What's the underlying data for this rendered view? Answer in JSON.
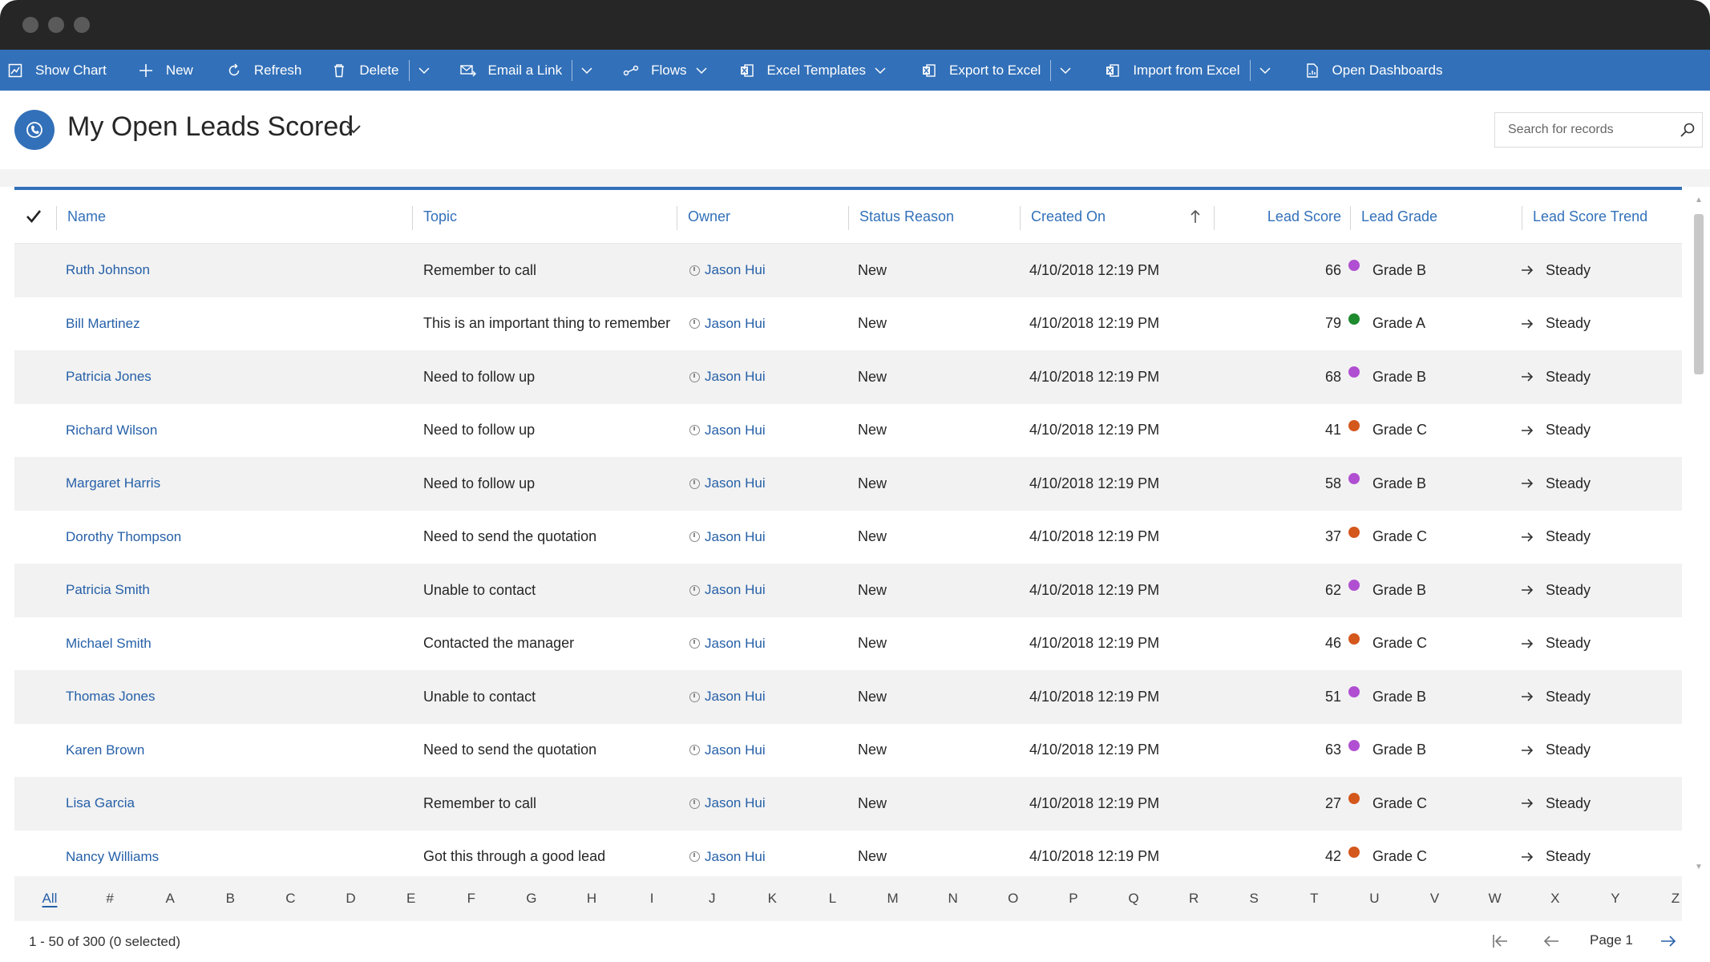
{
  "window": {
    "controls": [
      "close",
      "minimize",
      "maximize"
    ]
  },
  "commands": {
    "show_chart": "Show Chart",
    "new": "New",
    "refresh": "Refresh",
    "delete": "Delete",
    "email_link": "Email a Link",
    "flows": "Flows",
    "excel_templates": "Excel Templates",
    "export_excel": "Export to Excel",
    "import_excel": "Import from Excel",
    "open_dashboards": "Open Dashboards"
  },
  "view": {
    "title": "My Open Leads Scored",
    "search_placeholder": "Search for records"
  },
  "columns": {
    "name": "Name",
    "topic": "Topic",
    "owner": "Owner",
    "status": "Status Reason",
    "created": "Created On",
    "score": "Lead Score",
    "grade": "Lead Grade",
    "trend": "Lead Score Trend"
  },
  "rows": [
    {
      "name": "Ruth Johnson",
      "topic": "Remember to call",
      "owner": "Jason Hui",
      "status": "New",
      "created": "4/10/2018 12:19 PM",
      "score": "66",
      "grade": "Grade B",
      "grade_color": "#b04fd1",
      "trend": "Steady"
    },
    {
      "name": "Bill Martinez",
      "topic": "This is an important thing to remember",
      "owner": "Jason Hui",
      "status": "New",
      "created": "4/10/2018 12:19 PM",
      "score": "79",
      "grade": "Grade A",
      "grade_color": "#1e8a2e",
      "trend": "Steady"
    },
    {
      "name": "Patricia Jones",
      "topic": "Need to follow up",
      "owner": "Jason Hui",
      "status": "New",
      "created": "4/10/2018 12:19 PM",
      "score": "68",
      "grade": "Grade B",
      "grade_color": "#b04fd1",
      "trend": "Steady"
    },
    {
      "name": "Richard Wilson",
      "topic": "Need to follow up",
      "owner": "Jason Hui",
      "status": "New",
      "created": "4/10/2018 12:19 PM",
      "score": "41",
      "grade": "Grade C",
      "grade_color": "#d4571c",
      "trend": "Steady"
    },
    {
      "name": "Margaret Harris",
      "topic": "Need to follow up",
      "owner": "Jason Hui",
      "status": "New",
      "created": "4/10/2018 12:19 PM",
      "score": "58",
      "grade": "Grade B",
      "grade_color": "#b04fd1",
      "trend": "Steady"
    },
    {
      "name": "Dorothy Thompson",
      "topic": "Need to send the quotation",
      "owner": "Jason Hui",
      "status": "New",
      "created": "4/10/2018 12:19 PM",
      "score": "37",
      "grade": "Grade C",
      "grade_color": "#d4571c",
      "trend": "Steady"
    },
    {
      "name": "Patricia Smith",
      "topic": "Unable to contact",
      "owner": "Jason Hui",
      "status": "New",
      "created": "4/10/2018 12:19 PM",
      "score": "62",
      "grade": "Grade B",
      "grade_color": "#b04fd1",
      "trend": "Steady"
    },
    {
      "name": "Michael Smith",
      "topic": "Contacted the manager",
      "owner": "Jason Hui",
      "status": "New",
      "created": "4/10/2018 12:19 PM",
      "score": "46",
      "grade": "Grade C",
      "grade_color": "#d4571c",
      "trend": "Steady"
    },
    {
      "name": "Thomas Jones",
      "topic": "Unable to contact",
      "owner": "Jason Hui",
      "status": "New",
      "created": "4/10/2018 12:19 PM",
      "score": "51",
      "grade": "Grade B",
      "grade_color": "#b04fd1",
      "trend": "Steady"
    },
    {
      "name": "Karen Brown",
      "topic": "Need to send the quotation",
      "owner": "Jason Hui",
      "status": "New",
      "created": "4/10/2018 12:19 PM",
      "score": "63",
      "grade": "Grade B",
      "grade_color": "#b04fd1",
      "trend": "Steady"
    },
    {
      "name": "Lisa Garcia",
      "topic": "Remember to call",
      "owner": "Jason Hui",
      "status": "New",
      "created": "4/10/2018 12:19 PM",
      "score": "27",
      "grade": "Grade C",
      "grade_color": "#d4571c",
      "trend": "Steady"
    },
    {
      "name": "Nancy Williams",
      "topic": "Got this through a good lead",
      "owner": "Jason Hui",
      "status": "New",
      "created": "4/10/2018 12:19 PM",
      "score": "42",
      "grade": "Grade C",
      "grade_color": "#d4571c",
      "trend": "Steady"
    }
  ],
  "alpha": [
    "All",
    "#",
    "A",
    "B",
    "C",
    "D",
    "E",
    "F",
    "G",
    "H",
    "I",
    "J",
    "K",
    "L",
    "M",
    "N",
    "O",
    "P",
    "Q",
    "R",
    "S",
    "T",
    "U",
    "V",
    "W",
    "X",
    "Y",
    "Z"
  ],
  "footer": {
    "record_count": "1 - 50 of 300 (0 selected)",
    "page": "Page 1"
  },
  "colors": {
    "accent": "#3270b9",
    "link": "#2660a8",
    "titlebar": "#262626"
  },
  "icons": {
    "show_chart": "chart-icon",
    "new": "plus-icon",
    "refresh": "refresh-icon",
    "delete": "trash-icon",
    "email": "email-icon",
    "flows": "flow-icon",
    "excel": "excel-icon",
    "dashboard": "dashboard-icon",
    "search": "search-icon",
    "trend": "arrow-right-icon"
  }
}
